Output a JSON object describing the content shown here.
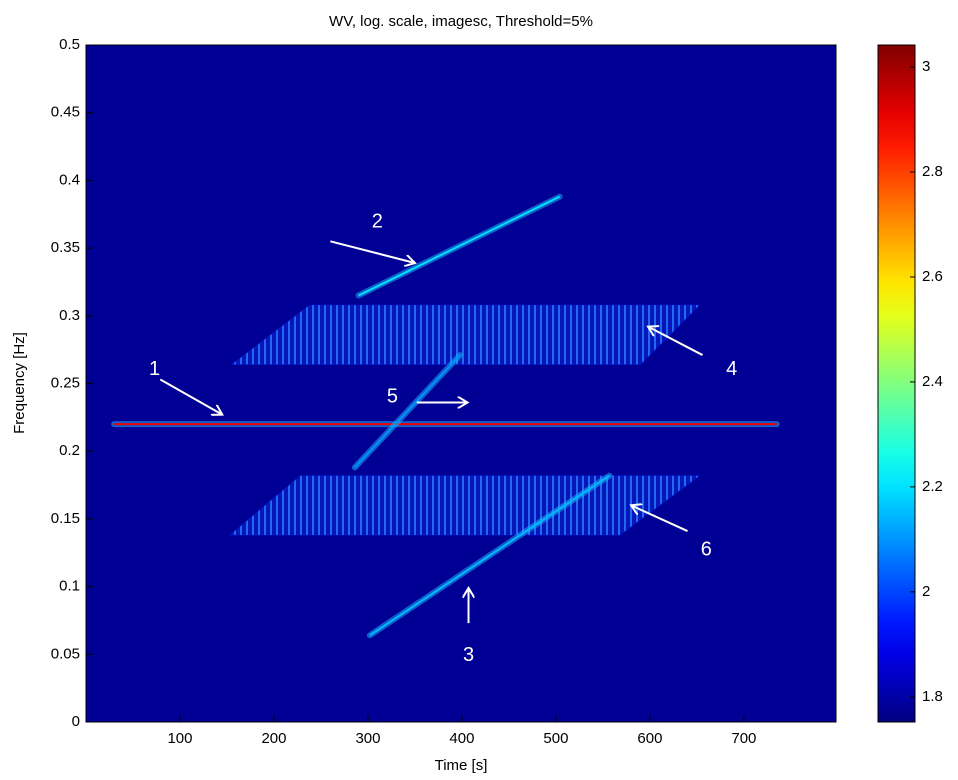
{
  "chart_data": {
    "type": "heatmap",
    "title": "WV, log. scale, imagesc, Threshold=5%",
    "xlabel": "Time [s]",
    "ylabel": "Frequency [Hz]",
    "xlim": [
      0,
      798
    ],
    "ylim": [
      0,
      0.5
    ],
    "xticks": [
      100,
      200,
      300,
      400,
      500,
      600,
      700
    ],
    "yticks": [
      0,
      0.05,
      0.1,
      0.15,
      0.2,
      0.25,
      0.3,
      0.35,
      0.4,
      0.45,
      0.5
    ],
    "colorbar": {
      "clim": [
        1.752,
        3.042
      ],
      "ticks": [
        1.8,
        2,
        2.2,
        2.4,
        2.6,
        2.8,
        3
      ]
    },
    "traces": [
      {
        "x": [
          30,
          735
        ],
        "y": [
          0.22,
          0.22
        ],
        "value": 2.9
      },
      {
        "x": [
          290,
          504
        ],
        "y": [
          0.315,
          0.388
        ],
        "value": 2.2
      },
      {
        "x": [
          302,
          557
        ],
        "y": [
          0.064,
          0.182
        ],
        "value": 2.15
      },
      {
        "x": [
          286,
          398
        ],
        "y": [
          0.188,
          0.271
        ],
        "value": 2.1
      }
    ],
    "regions": [
      {
        "x": [
          155,
          590,
          653,
          238
        ],
        "y": [
          0.264,
          0.264,
          0.308,
          0.308
        ],
        "value": 1.95
      },
      {
        "x": [
          153,
          568,
          653,
          228
        ],
        "y": [
          0.138,
          0.138,
          0.182,
          0.182
        ],
        "value": 1.95
      }
    ],
    "annotations": [
      {
        "text": "1",
        "x": 73,
        "y": 0.26,
        "arrow": [
          79,
          0.253,
          145,
          0.227
        ]
      },
      {
        "text": "2",
        "x": 310,
        "y": 0.369,
        "arrow": [
          260,
          0.355,
          350,
          0.339
        ]
      },
      {
        "text": "3",
        "x": 407,
        "y": 0.049,
        "arrow": [
          407,
          0.073,
          407,
          0.099
        ]
      },
      {
        "text": "4",
        "x": 687,
        "y": 0.26,
        "arrow": [
          656,
          0.271,
          598,
          0.292
        ]
      },
      {
        "text": "5",
        "x": 326,
        "y": 0.24,
        "arrow": [
          352,
          0.236,
          406,
          0.236
        ]
      },
      {
        "text": "6",
        "x": 660,
        "y": 0.127,
        "arrow": [
          640,
          0.141,
          580,
          0.16
        ]
      }
    ]
  }
}
